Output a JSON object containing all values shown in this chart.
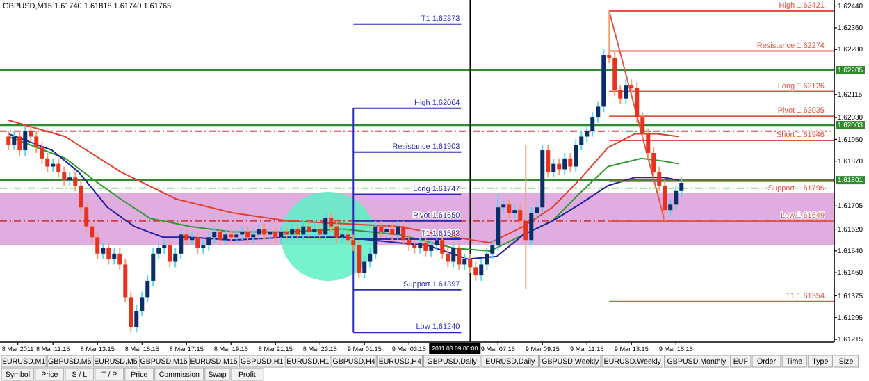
{
  "chart_data": {
    "type": "candlestick",
    "title": "GBPUSD,M15 1.61740 1.61818 1.61740 1.61765",
    "xlim": [
      "2011-03-08T08:52",
      "2011-03-09T22:22"
    ],
    "ylim": [
      1.61205,
      1.62462
    ],
    "xticks": [
      {
        "value": "2011-03-08T09:40",
        "label": "8 Mar 2011"
      },
      {
        "value": "2011-03-08T11:15",
        "label": "8 Mar 11:15"
      },
      {
        "value": "2011-03-08T13:15",
        "label": "8 Mar 13:15"
      },
      {
        "value": "2011-03-08T15:15",
        "label": "8 Mar 15:15"
      },
      {
        "value": "2011-03-08T17:15",
        "label": "8 Mar 17:15"
      },
      {
        "value": "2011-03-08T19:15",
        "label": "8 Mar 19:15"
      },
      {
        "value": "2011-03-08T21:15",
        "label": "8 Mar 21:15"
      },
      {
        "value": "2011-03-08T23:15",
        "label": "8 Mar 23:15"
      },
      {
        "value": "2011-03-09T01:15",
        "label": "9 Mar 01:15"
      },
      {
        "value": "2011-03-09T03:15",
        "label": "9 Mar 03:15"
      },
      {
        "value": "2011-03-09T07:15",
        "label": "9 Mar 07:15"
      },
      {
        "value": "2011-03-09T09:15",
        "label": "9 Mar 09:15"
      },
      {
        "value": "2011-03-09T11:15",
        "label": "9 Mar 11:15"
      },
      {
        "value": "2011-03-09T13:15",
        "label": "9 Mar 13:15"
      },
      {
        "value": "2011-03-09T15:15",
        "label": "9 Mar 15:15"
      }
    ],
    "yticks": [
      {
        "value": 1.6244,
        "label": "1.62440"
      },
      {
        "value": 1.6236,
        "label": "1.62360"
      },
      {
        "value": 1.6228,
        "label": "1.62280"
      },
      {
        "value": 1.62115,
        "label": "1.62115"
      },
      {
        "value": 1.6203,
        "label": "1.62030"
      },
      {
        "value": 1.6195,
        "label": "1.61950"
      },
      {
        "value": 1.6187,
        "label": "1.61870"
      },
      {
        "value": 1.61705,
        "label": "1.61705"
      },
      {
        "value": 1.6162,
        "label": "1.61620"
      },
      {
        "value": 1.6154,
        "label": "1.61540"
      },
      {
        "value": 1.6146,
        "label": "1.61460"
      },
      {
        "value": 1.61375,
        "label": "1.61375"
      },
      {
        "value": 1.61295,
        "label": "1.61295"
      },
      {
        "value": 1.61215,
        "label": "1.61215"
      }
    ],
    "x": [
      "2011-03-08T09:15",
      "2011-03-08T09:30",
      "2011-03-08T09:45",
      "2011-03-08T10:00",
      "2011-03-08T10:15",
      "2011-03-08T10:30",
      "2011-03-08T10:45",
      "2011-03-08T11:00",
      "2011-03-08T11:15",
      "2011-03-08T11:30",
      "2011-03-08T11:45",
      "2011-03-08T12:00",
      "2011-03-08T12:15",
      "2011-03-08T12:30",
      "2011-03-08T12:45",
      "2011-03-08T13:00",
      "2011-03-08T13:15",
      "2011-03-08T13:30",
      "2011-03-08T13:45",
      "2011-03-08T14:00",
      "2011-03-08T14:15",
      "2011-03-08T14:30",
      "2011-03-08T14:45",
      "2011-03-08T15:00",
      "2011-03-08T15:15",
      "2011-03-08T15:30",
      "2011-03-08T15:45",
      "2011-03-08T16:00",
      "2011-03-08T16:15",
      "2011-03-08T16:30",
      "2011-03-08T16:45",
      "2011-03-08T17:00",
      "2011-03-08T17:15",
      "2011-03-08T17:30",
      "2011-03-08T17:45",
      "2011-03-08T18:00",
      "2011-03-08T18:15",
      "2011-03-08T18:30",
      "2011-03-08T18:45",
      "2011-03-08T19:00",
      "2011-03-08T19:15",
      "2011-03-08T19:30",
      "2011-03-08T19:45",
      "2011-03-08T20:00",
      "2011-03-08T20:15",
      "2011-03-08T20:30",
      "2011-03-08T20:45",
      "2011-03-08T21:00",
      "2011-03-08T21:15",
      "2011-03-08T21:30",
      "2011-03-08T21:45",
      "2011-03-08T22:00",
      "2011-03-08T22:15",
      "2011-03-08T22:30",
      "2011-03-08T22:45",
      "2011-03-08T23:00",
      "2011-03-08T23:15",
      "2011-03-08T23:30",
      "2011-03-08T23:45",
      "2011-03-09T00:00",
      "2011-03-09T00:15",
      "2011-03-09T00:30",
      "2011-03-09T00:45",
      "2011-03-09T01:00",
      "2011-03-09T01:15",
      "2011-03-09T01:30",
      "2011-03-09T01:45",
      "2011-03-09T02:00",
      "2011-03-09T02:15",
      "2011-03-09T02:30",
      "2011-03-09T02:45",
      "2011-03-09T03:00",
      "2011-03-09T03:15",
      "2011-03-09T03:30",
      "2011-03-09T03:45",
      "2011-03-09T04:00",
      "2011-03-09T04:15",
      "2011-03-09T04:30",
      "2011-03-09T04:45",
      "2011-03-09T05:00",
      "2011-03-09T05:15",
      "2011-03-09T05:30",
      "2011-03-09T05:45",
      "2011-03-09T06:00",
      "2011-03-09T06:15",
      "2011-03-09T06:30",
      "2011-03-09T06:45",
      "2011-03-09T07:00",
      "2011-03-09T07:15",
      "2011-03-09T07:30",
      "2011-03-09T07:45",
      "2011-03-09T08:00",
      "2011-03-09T08:15",
      "2011-03-09T08:30",
      "2011-03-09T08:45",
      "2011-03-09T09:00",
      "2011-03-09T09:15",
      "2011-03-09T09:30",
      "2011-03-09T09:45",
      "2011-03-09T10:00",
      "2011-03-09T10:15",
      "2011-03-09T10:30",
      "2011-03-09T10:45",
      "2011-03-09T11:00",
      "2011-03-09T11:15",
      "2011-03-09T11:30",
      "2011-03-09T11:45",
      "2011-03-09T12:00",
      "2011-03-09T12:15",
      "2011-03-09T12:30",
      "2011-03-09T12:45",
      "2011-03-09T13:00",
      "2011-03-09T13:15",
      "2011-03-09T13:30",
      "2011-03-09T13:45",
      "2011-03-09T14:00",
      "2011-03-09T14:15",
      "2011-03-09T14:30",
      "2011-03-09T14:45",
      "2011-03-09T15:00",
      "2011-03-09T15:15",
      "2011-03-09T15:30"
    ],
    "ohlc": [
      [
        1.6196,
        1.6198,
        1.6191,
        1.6193
      ],
      [
        1.6193,
        1.6198,
        1.6191,
        1.6196
      ],
      [
        1.6196,
        1.6198,
        1.6189,
        1.6191
      ],
      [
        1.6191,
        1.62,
        1.6189,
        1.6198
      ],
      [
        1.6198,
        1.62,
        1.6194,
        1.6196
      ],
      [
        1.6196,
        1.6198,
        1.619,
        1.6192
      ],
      [
        1.6192,
        1.6194,
        1.6186,
        1.6188
      ],
      [
        1.6188,
        1.619,
        1.6183,
        1.6185
      ],
      [
        1.6185,
        1.6188,
        1.6183,
        1.6186
      ],
      [
        1.6186,
        1.6188,
        1.6181,
        1.6183
      ],
      [
        1.6183,
        1.6185,
        1.6178,
        1.618
      ],
      [
        1.618,
        1.6183,
        1.6178,
        1.6181
      ],
      [
        1.6181,
        1.6183,
        1.6176,
        1.6178
      ],
      [
        1.6178,
        1.618,
        1.6168,
        1.617
      ],
      [
        1.617,
        1.6172,
        1.6161,
        1.6163
      ],
      [
        1.6163,
        1.6165,
        1.6157,
        1.6159
      ],
      [
        1.6159,
        1.6161,
        1.6151,
        1.6153
      ],
      [
        1.6153,
        1.6157,
        1.6151,
        1.6155
      ],
      [
        1.6155,
        1.6157,
        1.6149,
        1.6151
      ],
      [
        1.6151,
        1.6155,
        1.6149,
        1.6153
      ],
      [
        1.6153,
        1.6155,
        1.6147,
        1.6149
      ],
      [
        1.6149,
        1.6151,
        1.6135,
        1.6137
      ],
      [
        1.6137,
        1.6139,
        1.6124,
        1.6126
      ],
      [
        1.6126,
        1.6134,
        1.6124,
        1.6132
      ],
      [
        1.6132,
        1.6139,
        1.613,
        1.6137
      ],
      [
        1.6137,
        1.6145,
        1.6135,
        1.6143
      ],
      [
        1.6143,
        1.6155,
        1.6141,
        1.6153
      ],
      [
        1.6153,
        1.6157,
        1.6151,
        1.6155
      ],
      [
        1.6155,
        1.6158,
        1.6153,
        1.6156
      ],
      [
        1.6156,
        1.6158,
        1.6148,
        1.615
      ],
      [
        1.615,
        1.6155,
        1.6148,
        1.6153
      ],
      [
        1.6153,
        1.6162,
        1.6151,
        1.616
      ],
      [
        1.616,
        1.6162,
        1.6156,
        1.6158
      ],
      [
        1.6158,
        1.6161,
        1.6156,
        1.6159
      ],
      [
        1.6159,
        1.6161,
        1.6153,
        1.6155
      ],
      [
        1.6155,
        1.6158,
        1.6153,
        1.6156
      ],
      [
        1.6156,
        1.6161,
        1.6154,
        1.6159
      ],
      [
        1.6159,
        1.6163,
        1.6157,
        1.6161
      ],
      [
        1.6161,
        1.6163,
        1.6156,
        1.6158
      ],
      [
        1.6158,
        1.6162,
        1.6156,
        1.616
      ],
      [
        1.616,
        1.6162,
        1.6157,
        1.6159
      ],
      [
        1.6159,
        1.6162,
        1.6157,
        1.616
      ],
      [
        1.616,
        1.6163,
        1.6158,
        1.6161
      ],
      [
        1.6161,
        1.6163,
        1.6157,
        1.6159
      ],
      [
        1.6159,
        1.6162,
        1.6157,
        1.616
      ],
      [
        1.616,
        1.6164,
        1.6158,
        1.6162
      ],
      [
        1.6162,
        1.6164,
        1.6158,
        1.616
      ],
      [
        1.616,
        1.6163,
        1.6158,
        1.6161
      ],
      [
        1.6161,
        1.6163,
        1.6157,
        1.6159
      ],
      [
        1.6159,
        1.6163,
        1.6157,
        1.6161
      ],
      [
        1.6161,
        1.6163,
        1.6158,
        1.616
      ],
      [
        1.616,
        1.6164,
        1.6158,
        1.6162
      ],
      [
        1.6162,
        1.6164,
        1.6158,
        1.616
      ],
      [
        1.616,
        1.6165,
        1.6158,
        1.6163
      ],
      [
        1.6163,
        1.6165,
        1.6159,
        1.6161
      ],
      [
        1.6161,
        1.6164,
        1.6159,
        1.6162
      ],
      [
        1.6162,
        1.6164,
        1.6158,
        1.616
      ],
      [
        1.616,
        1.6168,
        1.6158,
        1.6166
      ],
      [
        1.6166,
        1.6168,
        1.6161,
        1.6163
      ],
      [
        1.6163,
        1.6165,
        1.6157,
        1.6159
      ],
      [
        1.6159,
        1.6162,
        1.6157,
        1.616
      ],
      [
        1.616,
        1.6162,
        1.6156,
        1.6158
      ],
      [
        1.6158,
        1.616,
        1.6154,
        1.6156
      ],
      [
        1.6156,
        1.6158,
        1.6144,
        1.6146
      ],
      [
        1.6146,
        1.6152,
        1.6144,
        1.615
      ],
      [
        1.615,
        1.6155,
        1.6148,
        1.6153
      ],
      [
        1.6153,
        1.6165,
        1.6151,
        1.6163
      ],
      [
        1.6163,
        1.6165,
        1.6159,
        1.6161
      ],
      [
        1.6161,
        1.6164,
        1.6159,
        1.6162
      ],
      [
        1.6162,
        1.6164,
        1.6158,
        1.616
      ],
      [
        1.616,
        1.6165,
        1.6158,
        1.6163
      ],
      [
        1.6163,
        1.6165,
        1.6156,
        1.6158
      ],
      [
        1.6158,
        1.616,
        1.6154,
        1.6156
      ],
      [
        1.6156,
        1.6158,
        1.6153,
        1.6155
      ],
      [
        1.6155,
        1.6159,
        1.6153,
        1.6157
      ],
      [
        1.6157,
        1.6159,
        1.6152,
        1.6154
      ],
      [
        1.6154,
        1.6158,
        1.6152,
        1.6156
      ],
      [
        1.6156,
        1.616,
        1.6154,
        1.6158
      ],
      [
        1.6158,
        1.616,
        1.6151,
        1.6153
      ],
      [
        1.6153,
        1.6155,
        1.6148,
        1.615
      ],
      [
        1.615,
        1.6157,
        1.6148,
        1.6155
      ],
      [
        1.6155,
        1.6157,
        1.6147,
        1.6149
      ],
      [
        1.6149,
        1.6153,
        1.6147,
        1.6151
      ],
      [
        1.6151,
        1.6153,
        1.6146,
        1.6148
      ],
      [
        1.6148,
        1.615,
        1.6143,
        1.6145
      ],
      [
        1.6145,
        1.6151,
        1.6143,
        1.6149
      ],
      [
        1.6149,
        1.6155,
        1.6147,
        1.6153
      ],
      [
        1.6153,
        1.6158,
        1.6151,
        1.6156
      ],
      [
        1.6156,
        1.6175,
        1.6154,
        1.617
      ],
      [
        1.617,
        1.6173,
        1.6168,
        1.6171
      ],
      [
        1.6171,
        1.6173,
        1.6166,
        1.6168
      ],
      [
        1.6168,
        1.6171,
        1.6166,
        1.6169
      ],
      [
        1.6169,
        1.6171,
        1.6163,
        1.6165
      ],
      [
        1.6165,
        1.6193,
        1.614,
        1.6158
      ],
      [
        1.6158,
        1.617,
        1.6156,
        1.6168
      ],
      [
        1.6168,
        1.6172,
        1.6166,
        1.617
      ],
      [
        1.617,
        1.6193,
        1.6168,
        1.6191
      ],
      [
        1.6191,
        1.6193,
        1.6181,
        1.6183
      ],
      [
        1.6183,
        1.6188,
        1.6181,
        1.6186
      ],
      [
        1.6186,
        1.6188,
        1.6182,
        1.6184
      ],
      [
        1.6184,
        1.619,
        1.6182,
        1.6188
      ],
      [
        1.6188,
        1.619,
        1.6183,
        1.6185
      ],
      [
        1.6185,
        1.6195,
        1.6183,
        1.6193
      ],
      [
        1.6193,
        1.6198,
        1.6191,
        1.6196
      ],
      [
        1.6196,
        1.62,
        1.6194,
        1.6198
      ],
      [
        1.6198,
        1.6205,
        1.6196,
        1.6203
      ],
      [
        1.6203,
        1.6209,
        1.6201,
        1.6207
      ],
      [
        1.6207,
        1.6228,
        1.6205,
        1.6226
      ],
      [
        1.6226,
        1.6242,
        1.6223,
        1.6225
      ],
      [
        1.6225,
        1.6227,
        1.6211,
        1.6213
      ],
      [
        1.6213,
        1.6215,
        1.6208,
        1.621
      ],
      [
        1.621,
        1.6217,
        1.6208,
        1.6215
      ],
      [
        1.6215,
        1.6217,
        1.6212,
        1.6214
      ],
      [
        1.6214,
        1.6216,
        1.6201,
        1.6203
      ],
      [
        1.6203,
        1.6205,
        1.6195,
        1.6197
      ],
      [
        1.6197,
        1.6199,
        1.6188,
        1.619
      ],
      [
        1.619,
        1.6192,
        1.6181,
        1.6183
      ],
      [
        1.6183,
        1.6185,
        1.6176,
        1.6178
      ],
      [
        1.6178,
        1.618,
        1.6165,
        1.6169
      ],
      [
        1.6169,
        1.6173,
        1.6167,
        1.6171
      ],
      [
        1.6171,
        1.6178,
        1.6169,
        1.6176
      ],
      [
        1.6176,
        1.6181,
        1.6174,
        1.6179
      ]
    ],
    "series": [
      {
        "type": "line",
        "color": "#e0402a",
        "x": [
          "2011-03-08T09:15",
          "2011-03-08T11:48",
          "2011-03-08T14:18",
          "2011-03-08T16:48",
          "2011-03-08T19:18",
          "2011-03-08T21:48",
          "2011-03-09T00:18",
          "2011-03-09T02:48",
          "2011-03-09T05:18",
          "2011-03-09T06:54",
          "2011-03-09T08:24",
          "2011-03-09T09:42",
          "2011-03-09T10:54",
          "2011-03-09T12:12",
          "2011-03-09T13:24",
          "2011-03-09T14:24",
          "2011-03-09T15:24"
        ],
        "values": [
          1.6202,
          1.6196,
          1.6183,
          1.6173,
          1.6168,
          1.6165,
          1.6164,
          1.6163,
          1.6159,
          1.6157,
          1.6163,
          1.617,
          1.618,
          1.6192,
          1.6197,
          1.6197,
          1.6196
        ]
      },
      {
        "type": "line",
        "color": "#2e9b2e",
        "x": [
          "2011-03-08T09:15",
          "2011-03-08T11:48",
          "2011-03-08T13:06",
          "2011-03-08T14:18",
          "2011-03-08T15:36",
          "2011-03-08T17:24",
          "2011-03-08T19:18",
          "2011-03-08T21:48",
          "2011-03-09T00:18",
          "2011-03-09T02:48",
          "2011-03-09T05:18",
          "2011-03-09T06:54",
          "2011-03-09T08:24",
          "2011-03-09T09:42",
          "2011-03-09T10:54",
          "2011-03-09T12:12",
          "2011-03-09T13:42",
          "2011-03-09T14:42",
          "2011-03-09T15:24"
        ],
        "values": [
          1.6196,
          1.6188,
          1.618,
          1.6173,
          1.6166,
          1.6163,
          1.6161,
          1.6161,
          1.6162,
          1.616,
          1.6155,
          1.6154,
          1.616,
          1.6165,
          1.6175,
          1.6185,
          1.6188,
          1.6187,
          1.6186
        ]
      },
      {
        "type": "line",
        "color": "#2020a0",
        "x": [
          "2011-03-08T09:15",
          "2011-03-08T11:12",
          "2011-03-08T12:24",
          "2011-03-08T13:42",
          "2011-03-08T14:54",
          "2011-03-08T16:12",
          "2011-03-08T17:24",
          "2011-03-08T19:18",
          "2011-03-08T21:48",
          "2011-03-09T00:18",
          "2011-03-09T01:36",
          "2011-03-09T02:48",
          "2011-03-09T04:06",
          "2011-03-09T05:54",
          "2011-03-09T07:12",
          "2011-03-09T08:24",
          "2011-03-09T09:42",
          "2011-03-09T10:54",
          "2011-03-09T12:12",
          "2011-03-09T13:24",
          "2011-03-09T14:42",
          "2011-03-09T15:24"
        ],
        "values": [
          1.6197,
          1.6191,
          1.6183,
          1.617,
          1.6163,
          1.6159,
          1.6159,
          1.6158,
          1.6159,
          1.6159,
          1.6158,
          1.6157,
          1.6156,
          1.6151,
          1.6152,
          1.616,
          1.6165,
          1.6171,
          1.6178,
          1.6181,
          1.6181,
          1.618
        ]
      },
      {
        "type": "line",
        "name": "T1 1.62373",
        "color": "#2b2bb5",
        "x": [
          "2011-03-09T00:45",
          "2011-03-09T05:36"
        ],
        "values": [
          1.62373,
          1.62373
        ]
      },
      {
        "type": "line",
        "name": "High 1.62064",
        "color": "#2b2bb5",
        "x": [
          "2011-03-09T00:45",
          "2011-03-09T05:36"
        ],
        "values": [
          1.62064,
          1.62064
        ]
      },
      {
        "type": "line",
        "name": "Resistance 1.61903",
        "color": "#2b2bb5",
        "x": [
          "2011-03-09T00:45",
          "2011-03-09T05:36"
        ],
        "values": [
          1.61903,
          1.61903
        ]
      },
      {
        "type": "line",
        "name": "Long 1.61747",
        "color": "#2b2bb5",
        "x": [
          "2011-03-09T00:45",
          "2011-03-09T05:36"
        ],
        "values": [
          1.61747,
          1.61747
        ]
      },
      {
        "type": "line",
        "name": "Pivot 1.61650",
        "color": "#2b2bb5",
        "x": [
          "2011-03-09T00:45",
          "2011-03-09T05:36"
        ],
        "values": [
          1.6165,
          1.6165
        ]
      },
      {
        "type": "line",
        "name": "T1 1.61583",
        "color": "#2b2bb5",
        "x": [
          "2011-03-09T00:45",
          "2011-03-09T05:36"
        ],
        "values": [
          1.61583,
          1.61583
        ]
      },
      {
        "type": "line",
        "name": "Support 1.61397",
        "color": "#2b2bb5",
        "x": [
          "2011-03-09T00:45",
          "2011-03-09T05:36"
        ],
        "values": [
          1.61397,
          1.61397
        ]
      },
      {
        "type": "line",
        "name": "Low 1.61240",
        "color": "#2b2bb5",
        "x": [
          "2011-03-09T00:45",
          "2011-03-09T05:36"
        ],
        "values": [
          1.6124,
          1.6124
        ]
      },
      {
        "type": "line",
        "color": "#2b2bb5",
        "x": [
          "2011-03-09T00:45",
          "2011-03-09T00:45"
        ],
        "values": [
          1.62064,
          1.6124
        ]
      },
      {
        "type": "line",
        "name": "High 1.62421",
        "color": "#e05545",
        "x": [
          "2011-03-09T12:15",
          "2011-03-09T22:22"
        ],
        "values": [
          1.62421,
          1.62421
        ]
      },
      {
        "type": "line",
        "name": "Resistance 1.62274",
        "color": "#e05545",
        "x": [
          "2011-03-09T12:15",
          "2011-03-09T22:22"
        ],
        "values": [
          1.62274,
          1.62274
        ]
      },
      {
        "type": "line",
        "name": "Long 1.62126",
        "color": "#e05545",
        "x": [
          "2011-03-09T12:15",
          "2011-03-09T22:22"
        ],
        "values": [
          1.62126,
          1.62126
        ]
      },
      {
        "type": "line",
        "name": "Pivot 1.62035",
        "color": "#e05545",
        "x": [
          "2011-03-09T12:15",
          "2011-03-09T22:22"
        ],
        "values": [
          1.62035,
          1.62035
        ]
      },
      {
        "type": "line",
        "name": "Short 1.61946",
        "color": "#e05545",
        "x": [
          "2011-03-09T12:15",
          "2011-03-09T22:22"
        ],
        "values": [
          1.61946,
          1.61946
        ]
      },
      {
        "type": "line",
        "name": "Support 1.61796",
        "color": "#e05545",
        "x": [
          "2011-03-09T12:15",
          "2011-03-09T22:22"
        ],
        "values": [
          1.61796,
          1.61796
        ]
      },
      {
        "type": "line",
        "name": "Low 1.61649",
        "color": "#e05545",
        "x": [
          "2011-03-09T12:15",
          "2011-03-09T22:22"
        ],
        "values": [
          1.61649,
          1.61649
        ]
      },
      {
        "type": "line",
        "name": "T1 1.61354",
        "color": "#e05545",
        "x": [
          "2011-03-09T12:15",
          "2011-03-09T22:22"
        ],
        "values": [
          1.61354,
          1.61354
        ]
      },
      {
        "type": "line",
        "color": "#e05545",
        "x": [
          "2011-03-09T12:15",
          "2011-03-09T14:45"
        ],
        "values": [
          1.62421,
          1.61649
        ]
      }
    ],
    "ref_lines": [
      {
        "axis": "y",
        "value": 1.62205,
        "label": "1.62205",
        "color": "#2e8b2e"
      },
      {
        "axis": "y",
        "value": 1.62003,
        "label": "1.62003",
        "color": "#2e8b2e"
      },
      {
        "axis": "y",
        "value": 1.61801,
        "label": "1.61801",
        "color": "#2e8b2e"
      },
      {
        "axis": "y",
        "value": 1.6198,
        "color": "#d04040",
        "line_style": "dashed"
      },
      {
        "axis": "y",
        "value": 1.6165,
        "color": "#d04040",
        "line_style": "dashed"
      },
      {
        "axis": "y",
        "value": 1.6177,
        "color": "#8fe08f",
        "line_style": "dashed"
      },
      {
        "axis": "x",
        "value": "2011-03-09T06:00",
        "label": "2011.03.09 06:00",
        "color": "#000000"
      }
    ],
    "bands": [
      {
        "axis": "y",
        "from": 1.61562,
        "to": 1.61754,
        "color": "#dc9fdc"
      }
    ],
    "annotations": [
      "EURUSD,M1",
      "GBPUSD,M5",
      "EURUSD,M5",
      "GBPUSD,M15",
      "EURUSD,M15",
      "GBPUSD,H1",
      "EURUSD,H1",
      "GBPUSD,H4",
      "EURUSD,H4",
      "GBPUSD,Daily",
      "EURUSD,Daily",
      "GBPUSD,Weekly",
      "EURUSD,Weekly",
      "GBPUSD,Monthly",
      "EUF",
      "Order",
      "Time",
      "Type",
      "Size",
      "Symbol",
      "Price",
      "S / L",
      "T / P",
      "Price",
      "Commission",
      "Swap",
      "Profit"
    ]
  }
}
